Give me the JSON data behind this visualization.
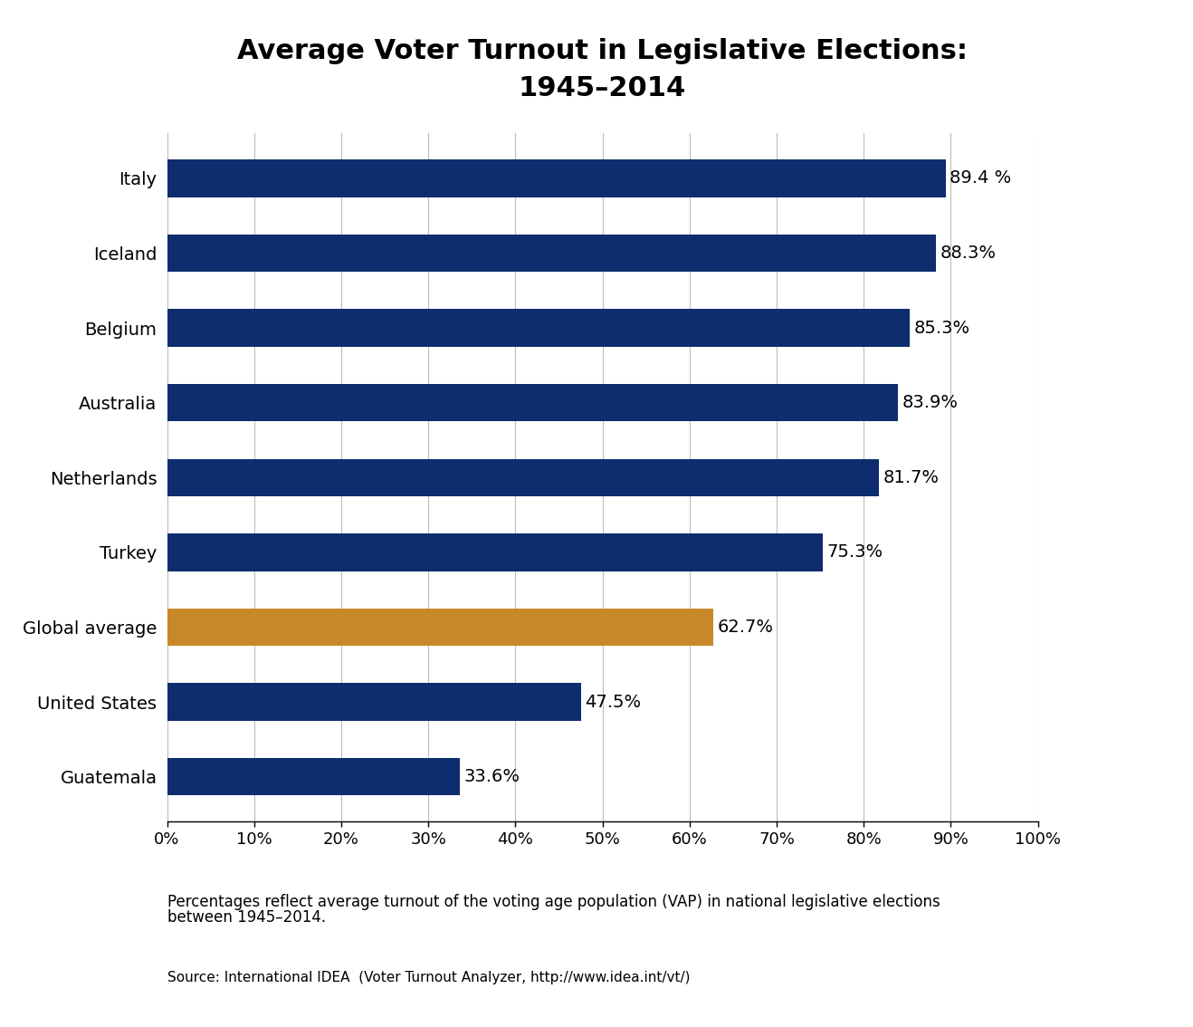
{
  "title": "Average Voter Turnout in Legislative Elections:\n1945–2014",
  "categories": [
    "Italy",
    "Iceland",
    "Belgium",
    "Australia",
    "Netherlands",
    "Turkey",
    "Global average",
    "United States",
    "Guatemala"
  ],
  "values": [
    89.4,
    88.3,
    85.3,
    83.9,
    81.7,
    75.3,
    62.7,
    47.5,
    33.6
  ],
  "labels": [
    "89.4 %",
    "88.3%",
    "85.3%",
    "83.9%",
    "81.7%",
    "75.3%",
    "62.7%",
    "47.5%",
    "33.6%"
  ],
  "bar_colors": [
    "#0d2d6e",
    "#0d2d6e",
    "#0d2d6e",
    "#0d2d6e",
    "#0d2d6e",
    "#0d2d6e",
    "#c8882a",
    "#0d2d6e",
    "#0d2d6e"
  ],
  "xlim": [
    0,
    100
  ],
  "xticks": [
    0,
    10,
    20,
    30,
    40,
    50,
    60,
    70,
    80,
    90,
    100
  ],
  "xtick_labels": [
    "0%",
    "10%",
    "20%",
    "30%",
    "40%",
    "50%",
    "60%",
    "70%",
    "80%",
    "90%",
    "100%"
  ],
  "footnote1": "Percentages reflect average turnout of the voting age population (VAP) in national legislative elections",
  "footnote2": "between 1945–2014.",
  "source": "Source: International IDEA  (Voter Turnout Analyzer, http://www.idea.int/vt/)",
  "title_fontsize": 22,
  "label_fontsize": 14,
  "tick_fontsize": 13,
  "footnote_fontsize": 12,
  "background_color": "#ffffff",
  "grid_color": "#bbbbbb",
  "bar_height": 0.5
}
